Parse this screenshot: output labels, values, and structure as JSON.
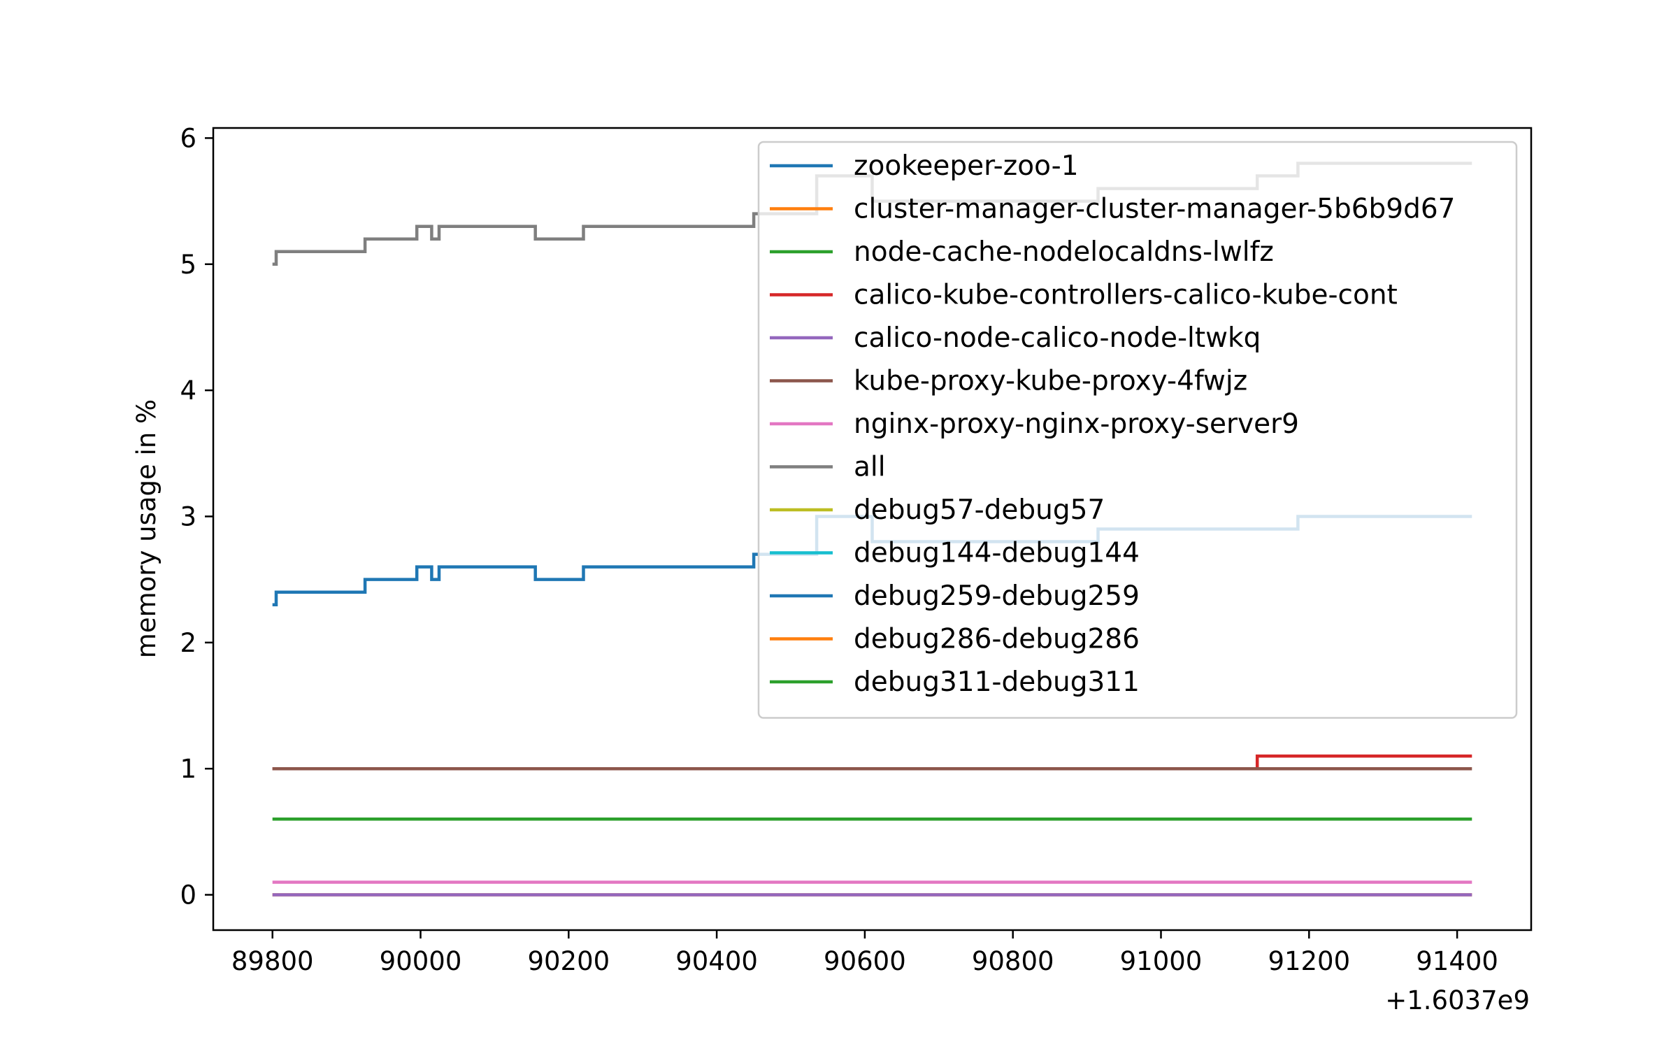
{
  "chart_data": {
    "type": "line",
    "title": "",
    "xlabel": "",
    "ylabel": "memory usage in %",
    "x_offset_label": "+1.6037e9",
    "xlim": [
      89720,
      91500
    ],
    "ylim": [
      -0.28,
      6.08
    ],
    "x_ticks": [
      89800,
      90000,
      90200,
      90400,
      90600,
      90800,
      91000,
      91200,
      91400
    ],
    "y_ticks": [
      0,
      1,
      2,
      3,
      4,
      5,
      6
    ],
    "grid": false,
    "legend_position": "upper right",
    "colors": {
      "blue": "#1f77b4",
      "orange": "#ff7f0e",
      "green": "#2ca02c",
      "red": "#d62728",
      "purple": "#9467bd",
      "brown": "#8c564b",
      "pink": "#e377c2",
      "gray": "#7f7f7f",
      "olive": "#bcbd22",
      "cyan": "#17becf"
    },
    "series": [
      {
        "name": "zookeeper-zoo-1",
        "color": "#1f77b4",
        "step": true,
        "x": [
          89800,
          89805,
          89925,
          89995,
          90015,
          90025,
          90155,
          90220,
          90450,
          90535,
          90610,
          90915,
          91185,
          91420
        ],
        "y": [
          2.3,
          2.4,
          2.5,
          2.6,
          2.5,
          2.6,
          2.5,
          2.6,
          2.7,
          3.0,
          2.8,
          2.9,
          3.0,
          3.0
        ]
      },
      {
        "name": "cluster-manager-cluster-manager-5b6b9d67",
        "color": "#ff7f0e",
        "step": true,
        "x": [
          89800,
          91420
        ],
        "y": [
          0.0,
          0.0
        ]
      },
      {
        "name": "node-cache-nodelocaldns-lwlfz",
        "color": "#2ca02c",
        "step": true,
        "x": [
          89800,
          91420
        ],
        "y": [
          0.6,
          0.6
        ]
      },
      {
        "name": "calico-kube-controllers-calico-kube-cont",
        "color": "#d62728",
        "step": true,
        "x": [
          89800,
          91130,
          91420
        ],
        "y": [
          1.0,
          1.1,
          1.1
        ]
      },
      {
        "name": "calico-node-calico-node-ltwkq",
        "color": "#9467bd",
        "step": true,
        "x": [
          89800,
          91420
        ],
        "y": [
          0.0,
          0.0
        ]
      },
      {
        "name": "kube-proxy-kube-proxy-4fwjz",
        "color": "#8c564b",
        "step": true,
        "x": [
          89800,
          91420
        ],
        "y": [
          1.0,
          1.0
        ]
      },
      {
        "name": "nginx-proxy-nginx-proxy-server9",
        "color": "#e377c2",
        "step": true,
        "x": [
          89800,
          91420
        ],
        "y": [
          0.1,
          0.1
        ]
      },
      {
        "name": "all",
        "color": "#7f7f7f",
        "step": true,
        "x": [
          89800,
          89805,
          89925,
          89995,
          90015,
          90025,
          90155,
          90220,
          90450,
          90535,
          90610,
          90915,
          91130,
          91185,
          91420
        ],
        "y": [
          5.0,
          5.1,
          5.2,
          5.3,
          5.2,
          5.3,
          5.2,
          5.3,
          5.4,
          5.7,
          5.5,
          5.6,
          5.7,
          5.8,
          5.8
        ]
      },
      {
        "name": "debug57-debug57",
        "color": "#bcbd22",
        "step": true,
        "x": [],
        "y": []
      },
      {
        "name": "debug144-debug144",
        "color": "#17becf",
        "step": true,
        "x": [],
        "y": []
      },
      {
        "name": "debug259-debug259",
        "color": "#1f77b4",
        "step": true,
        "x": [],
        "y": []
      },
      {
        "name": "debug286-debug286",
        "color": "#ff7f0e",
        "step": true,
        "x": [],
        "y": []
      },
      {
        "name": "debug311-debug311",
        "color": "#2ca02c",
        "step": true,
        "x": [],
        "y": []
      }
    ]
  }
}
